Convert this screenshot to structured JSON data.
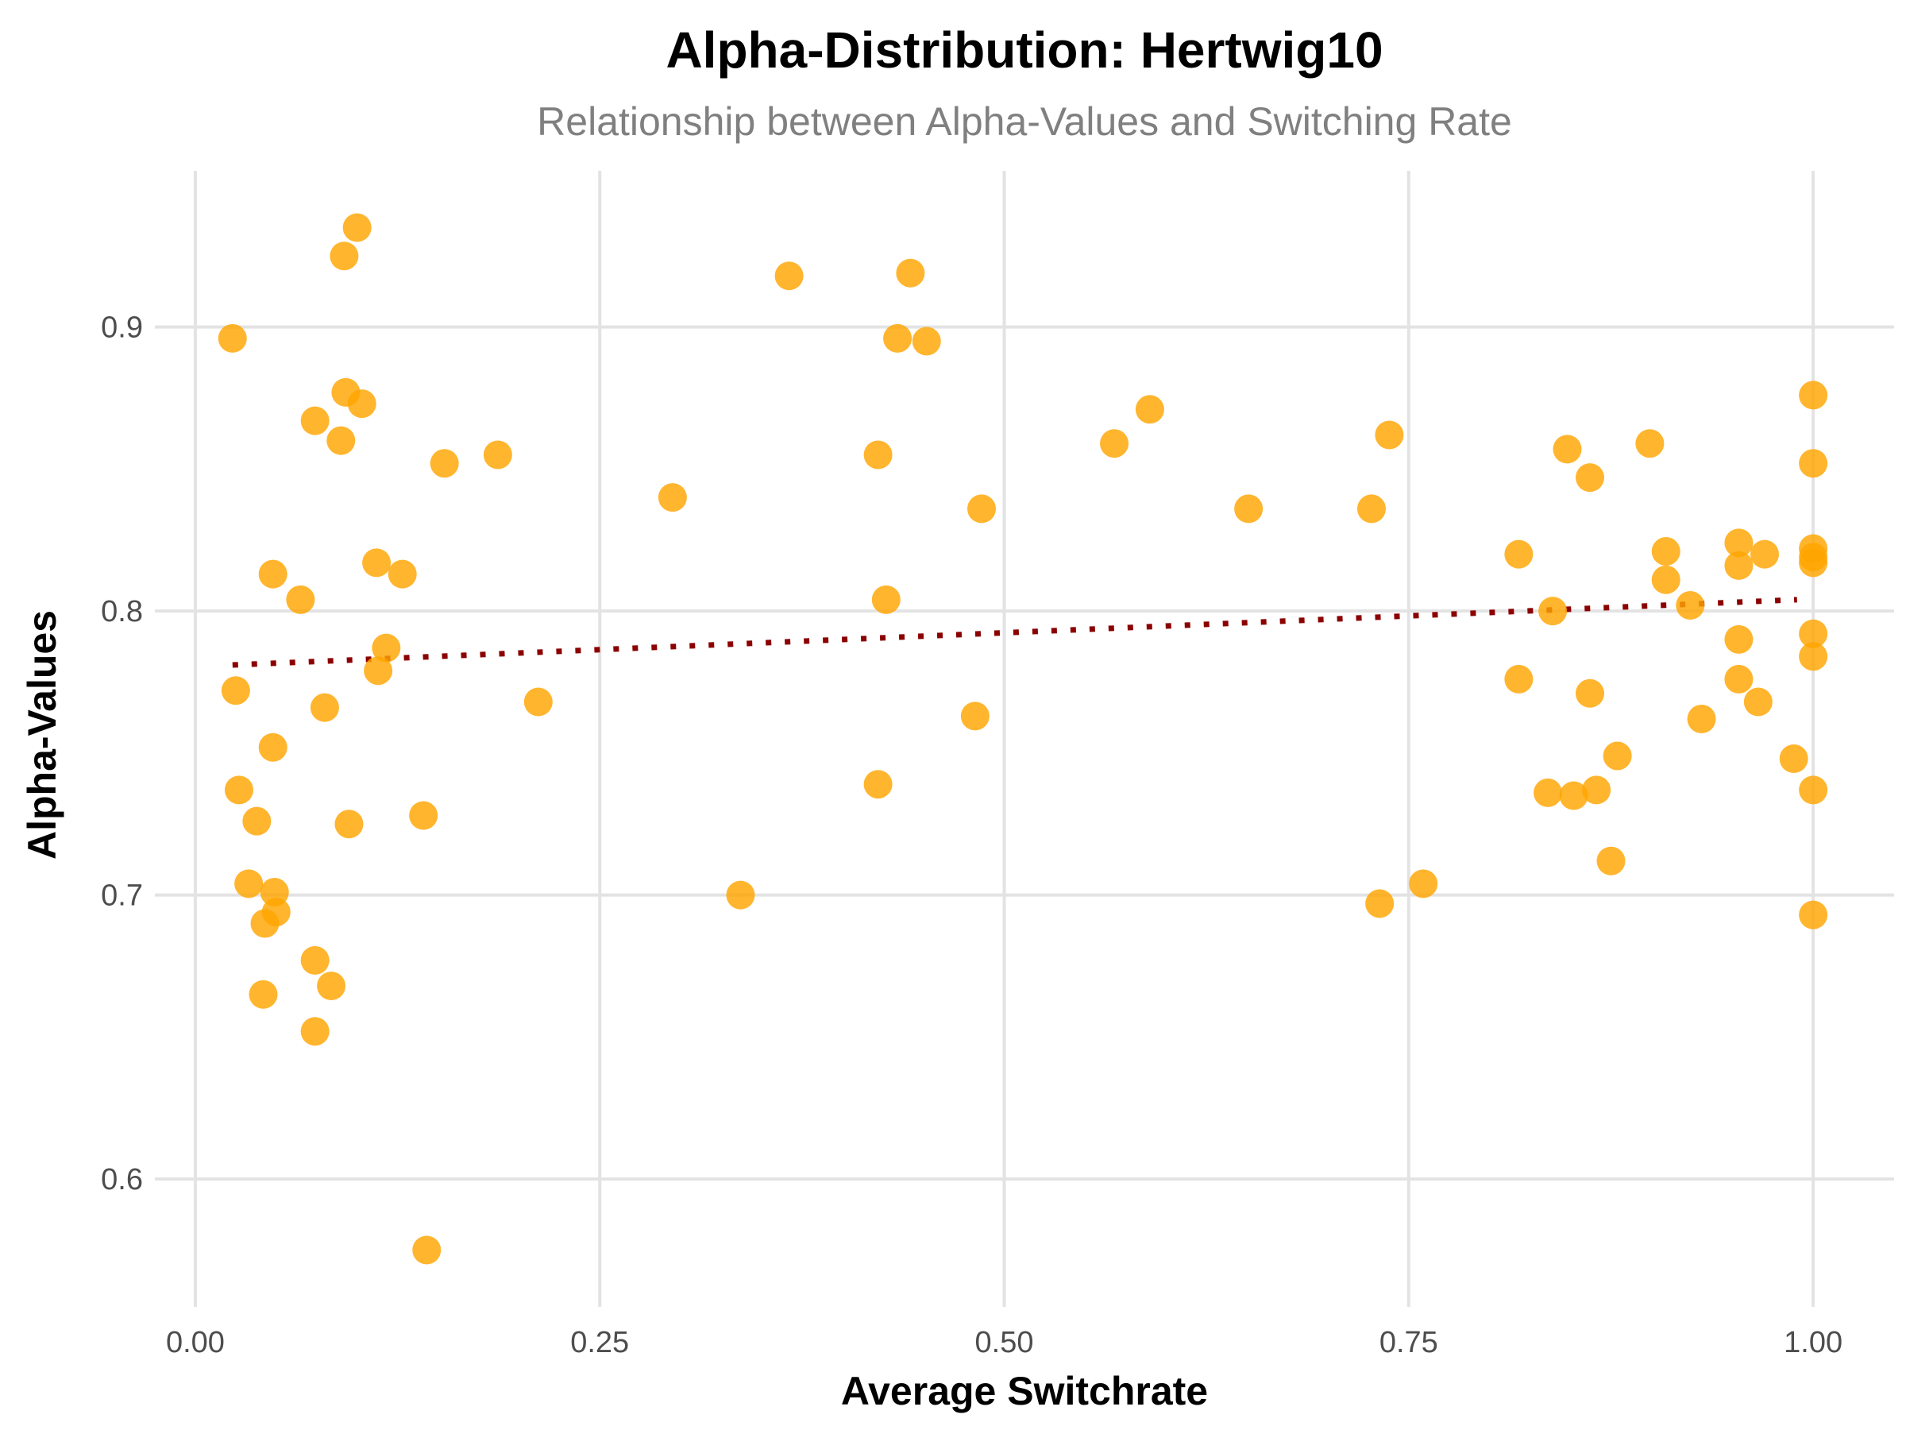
{
  "chart_data": {
    "type": "scatter",
    "title": "Alpha-Distribution: Hertwig10",
    "subtitle": "Relationship between Alpha-Values and Switching Rate",
    "xlabel": "Average Switchrate",
    "ylabel": "Alpha-Values",
    "xlim": [
      -0.025,
      1.05
    ],
    "ylim": [
      0.555,
      0.955
    ],
    "x_ticks": [
      0.0,
      0.25,
      0.5,
      0.75,
      1.0
    ],
    "x_tick_labels": [
      "0.00",
      "0.25",
      "0.50",
      "0.75",
      "1.00"
    ],
    "y_ticks": [
      0.6,
      0.7,
      0.8,
      0.9
    ],
    "y_tick_labels": [
      "0.6",
      "0.7",
      "0.8",
      "0.9"
    ],
    "grid": true,
    "colors": {
      "points": "#ffa500",
      "trend": "#8b0000",
      "grid": "#e3e3e3"
    },
    "trend_line": {
      "style": "dotted",
      "x": [
        0.023,
        0.99
      ],
      "y": [
        0.781,
        0.804
      ]
    },
    "points": [
      {
        "x": 0.023,
        "y": 0.896
      },
      {
        "x": 0.025,
        "y": 0.772
      },
      {
        "x": 0.027,
        "y": 0.737
      },
      {
        "x": 0.033,
        "y": 0.704
      },
      {
        "x": 0.038,
        "y": 0.726
      },
      {
        "x": 0.042,
        "y": 0.665
      },
      {
        "x": 0.043,
        "y": 0.69
      },
      {
        "x": 0.048,
        "y": 0.813
      },
      {
        "x": 0.048,
        "y": 0.752
      },
      {
        "x": 0.049,
        "y": 0.701
      },
      {
        "x": 0.05,
        "y": 0.694
      },
      {
        "x": 0.065,
        "y": 0.804
      },
      {
        "x": 0.074,
        "y": 0.867
      },
      {
        "x": 0.074,
        "y": 0.677
      },
      {
        "x": 0.074,
        "y": 0.652
      },
      {
        "x": 0.08,
        "y": 0.766
      },
      {
        "x": 0.084,
        "y": 0.668
      },
      {
        "x": 0.092,
        "y": 0.925
      },
      {
        "x": 0.093,
        "y": 0.877
      },
      {
        "x": 0.09,
        "y": 0.86
      },
      {
        "x": 0.095,
        "y": 0.725
      },
      {
        "x": 0.1,
        "y": 0.935
      },
      {
        "x": 0.103,
        "y": 0.873
      },
      {
        "x": 0.112,
        "y": 0.817
      },
      {
        "x": 0.113,
        "y": 0.779
      },
      {
        "x": 0.118,
        "y": 0.787
      },
      {
        "x": 0.128,
        "y": 0.813
      },
      {
        "x": 0.141,
        "y": 0.728
      },
      {
        "x": 0.143,
        "y": 0.575
      },
      {
        "x": 0.154,
        "y": 0.852
      },
      {
        "x": 0.187,
        "y": 0.855
      },
      {
        "x": 0.212,
        "y": 0.768
      },
      {
        "x": 0.295,
        "y": 0.84
      },
      {
        "x": 0.337,
        "y": 0.7
      },
      {
        "x": 0.367,
        "y": 0.918
      },
      {
        "x": 0.422,
        "y": 0.855
      },
      {
        "x": 0.422,
        "y": 0.739
      },
      {
        "x": 0.427,
        "y": 0.804
      },
      {
        "x": 0.434,
        "y": 0.896
      },
      {
        "x": 0.442,
        "y": 0.919
      },
      {
        "x": 0.452,
        "y": 0.895
      },
      {
        "x": 0.482,
        "y": 0.763
      },
      {
        "x": 0.486,
        "y": 0.836
      },
      {
        "x": 0.568,
        "y": 0.859
      },
      {
        "x": 0.59,
        "y": 0.871
      },
      {
        "x": 0.651,
        "y": 0.836
      },
      {
        "x": 0.727,
        "y": 0.836
      },
      {
        "x": 0.732,
        "y": 0.697
      },
      {
        "x": 0.738,
        "y": 0.862
      },
      {
        "x": 0.759,
        "y": 0.704
      },
      {
        "x": 0.818,
        "y": 0.82
      },
      {
        "x": 0.818,
        "y": 0.776
      },
      {
        "x": 0.836,
        "y": 0.736
      },
      {
        "x": 0.839,
        "y": 0.8
      },
      {
        "x": 0.848,
        "y": 0.857
      },
      {
        "x": 0.852,
        "y": 0.735
      },
      {
        "x": 0.862,
        "y": 0.847
      },
      {
        "x": 0.862,
        "y": 0.771
      },
      {
        "x": 0.866,
        "y": 0.737
      },
      {
        "x": 0.875,
        "y": 0.712
      },
      {
        "x": 0.879,
        "y": 0.749
      },
      {
        "x": 0.899,
        "y": 0.859
      },
      {
        "x": 0.909,
        "y": 0.821
      },
      {
        "x": 0.909,
        "y": 0.811
      },
      {
        "x": 0.924,
        "y": 0.802
      },
      {
        "x": 0.931,
        "y": 0.762
      },
      {
        "x": 0.954,
        "y": 0.824
      },
      {
        "x": 0.954,
        "y": 0.816
      },
      {
        "x": 0.954,
        "y": 0.79
      },
      {
        "x": 0.954,
        "y": 0.776
      },
      {
        "x": 0.966,
        "y": 0.768
      },
      {
        "x": 0.97,
        "y": 0.82
      },
      {
        "x": 0.988,
        "y": 0.748
      },
      {
        "x": 1.0,
        "y": 0.876
      },
      {
        "x": 1.0,
        "y": 0.852
      },
      {
        "x": 1.0,
        "y": 0.822
      },
      {
        "x": 1.0,
        "y": 0.819
      },
      {
        "x": 1.0,
        "y": 0.817
      },
      {
        "x": 1.0,
        "y": 0.792
      },
      {
        "x": 1.0,
        "y": 0.784
      },
      {
        "x": 1.0,
        "y": 0.737
      },
      {
        "x": 1.0,
        "y": 0.693
      }
    ]
  }
}
